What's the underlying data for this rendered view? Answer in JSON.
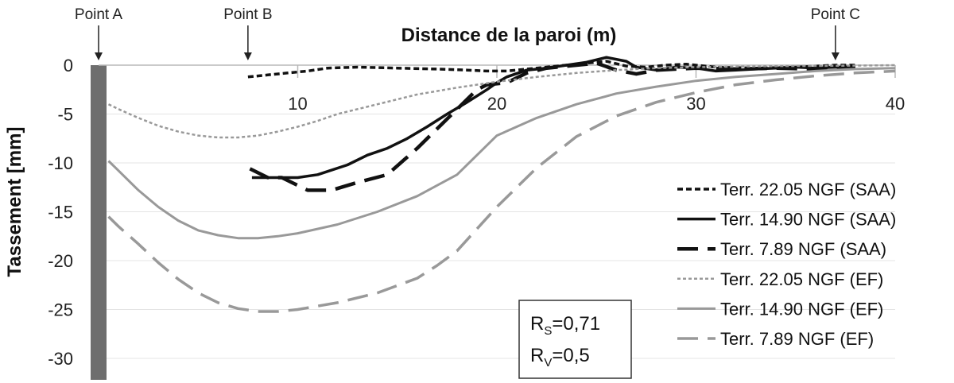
{
  "chart_data": {
    "type": "line",
    "xlabel": "Distance de la paroi (m)",
    "ylabel": "Tassement [mm]",
    "xlim": [
      0,
      40
    ],
    "ylim": [
      -31,
      0
    ],
    "x_axis_position": "top",
    "x_ticks": [
      "10",
      "20",
      "30",
      "40"
    ],
    "y_ticks": [
      "0",
      "-5",
      "-10",
      "-15",
      "-20",
      "-25",
      "-30"
    ],
    "grid": true,
    "legend_position": "right",
    "points": [
      {
        "label": "Point A",
        "x": 0
      },
      {
        "label": "Point B",
        "x": 7.5
      },
      {
        "label": "Point C",
        "x": 37
      }
    ],
    "annotation": {
      "rs_main": "R",
      "rs_sub": "S",
      "rs_value": "=0,71",
      "rv_main": "R",
      "rv_sub": "V",
      "rv_value": "=0,5"
    },
    "series": [
      {
        "name": "Terr. 22.05 NGF (SAA)",
        "color": "#111111",
        "dash": "short",
        "width": 3.5,
        "x": [
          7.5,
          8.5,
          9.5,
          10.5,
          11.5,
          13,
          15,
          17,
          18.5,
          19.5,
          20.5,
          22,
          23,
          24.5,
          25.5,
          26.5,
          27.5,
          28.5,
          29.5,
          31,
          33,
          35,
          37,
          38
        ],
        "y": [
          -1.2,
          -1.0,
          -0.8,
          -0.6,
          -0.3,
          -0.2,
          -0.3,
          -0.4,
          -0.5,
          -0.6,
          -0.6,
          -0.3,
          -0.1,
          0.2,
          0.4,
          -0.1,
          -0.2,
          0.0,
          0.1,
          -0.2,
          -0.3,
          -0.2,
          0.0,
          0.0
        ]
      },
      {
        "name": "Terr. 14.90 NGF (SAA)",
        "color": "#111111",
        "dash": "solid",
        "width": 3.5,
        "x": [
          7.7,
          9,
          10,
          11,
          12.5,
          13.5,
          14.5,
          15.5,
          16.5,
          17.5,
          18.5,
          19.5,
          20,
          20.5,
          21.5,
          22.5,
          23.5,
          24.5,
          25.5,
          26.5,
          27,
          28,
          29,
          30,
          31,
          32,
          33,
          34,
          35,
          36,
          37,
          38
        ],
        "y": [
          -11.5,
          -11.5,
          -11.5,
          -11.2,
          -10.2,
          -9.2,
          -8.5,
          -7.5,
          -6.3,
          -5.0,
          -3.8,
          -2.5,
          -1.8,
          -1.2,
          -0.5,
          -0.3,
          0.0,
          0.3,
          0.8,
          0.4,
          -0.2,
          -0.5,
          -0.2,
          -0.3,
          -0.6,
          -0.5,
          -0.4,
          -0.3,
          -0.2,
          -0.3,
          -0.2,
          -0.2
        ]
      },
      {
        "name": "Terr. 7.89 NGF (SAA)",
        "color": "#111111",
        "dash": "long",
        "width": 4.5,
        "x": [
          7.6,
          8.5,
          9.2,
          10.5,
          11.7,
          13,
          14.5,
          16,
          17.5,
          19,
          19.5,
          20.5,
          21.5,
          22.5,
          24,
          25,
          26,
          27,
          28,
          30,
          32,
          34,
          36,
          37,
          38
        ],
        "y": [
          -10.6,
          -11.5,
          -11.5,
          -12.8,
          -12.8,
          -12.0,
          -11.2,
          -8.5,
          -5.5,
          -2.5,
          -2.0,
          -1.8,
          -0.8,
          -0.3,
          0.0,
          0.2,
          -0.5,
          -0.9,
          -0.5,
          -0.3,
          -0.4,
          -0.3,
          -0.4,
          -0.3,
          -0.2
        ]
      },
      {
        "name": "Terr. 22.05 NGF (EF)",
        "color": "#999999",
        "dash": "dotted",
        "width": 2.5,
        "x": [
          0.5,
          1,
          2,
          3,
          4,
          5,
          6,
          7,
          8,
          9,
          10,
          11,
          12,
          14,
          16,
          18,
          20,
          22,
          24,
          26,
          28,
          30,
          34,
          38,
          40
        ],
        "y": [
          -4.0,
          -4.5,
          -5.4,
          -6.2,
          -6.8,
          -7.2,
          -7.4,
          -7.4,
          -7.2,
          -6.8,
          -6.3,
          -5.7,
          -5.0,
          -4.0,
          -3.0,
          -2.3,
          -1.7,
          -1.2,
          -0.8,
          -0.5,
          -0.3,
          -0.2,
          -0.1,
          -0.05,
          0.0
        ]
      },
      {
        "name": "Terr. 14.90 NGF (EF)",
        "color": "#999999",
        "dash": "solid",
        "width": 3,
        "x": [
          0.5,
          1,
          2,
          3,
          4,
          5,
          6,
          7,
          8,
          9,
          10,
          12,
          14,
          16,
          18,
          20,
          22,
          24,
          26,
          28,
          30,
          32,
          34,
          36,
          38,
          40
        ],
        "y": [
          -9.8,
          -10.8,
          -12.8,
          -14.5,
          -15.9,
          -16.9,
          -17.4,
          -17.7,
          -17.7,
          -17.5,
          -17.2,
          -16.3,
          -15.0,
          -13.4,
          -11.2,
          -7.2,
          -5.4,
          -4.0,
          -2.9,
          -2.2,
          -1.6,
          -1.2,
          -0.9,
          -0.6,
          -0.4,
          -0.3
        ]
      },
      {
        "name": "Terr. 7.89 NGF (EF)",
        "color": "#999999",
        "dash": "long",
        "width": 3.5,
        "x": [
          0.5,
          1,
          2,
          3,
          4,
          5,
          6,
          7,
          8,
          9,
          10,
          12,
          14,
          16,
          17,
          18,
          20,
          22,
          24,
          26,
          28,
          30,
          32,
          34,
          36,
          38,
          40
        ],
        "y": [
          -15.5,
          -16.5,
          -18.3,
          -20.2,
          -21.9,
          -23.3,
          -24.3,
          -24.9,
          -25.2,
          -25.2,
          -25.0,
          -24.3,
          -23.3,
          -21.8,
          -20.5,
          -19.0,
          -14.5,
          -10.5,
          -7.3,
          -5.2,
          -3.8,
          -2.8,
          -2.0,
          -1.5,
          -1.1,
          -0.8,
          -0.6
        ]
      }
    ]
  }
}
